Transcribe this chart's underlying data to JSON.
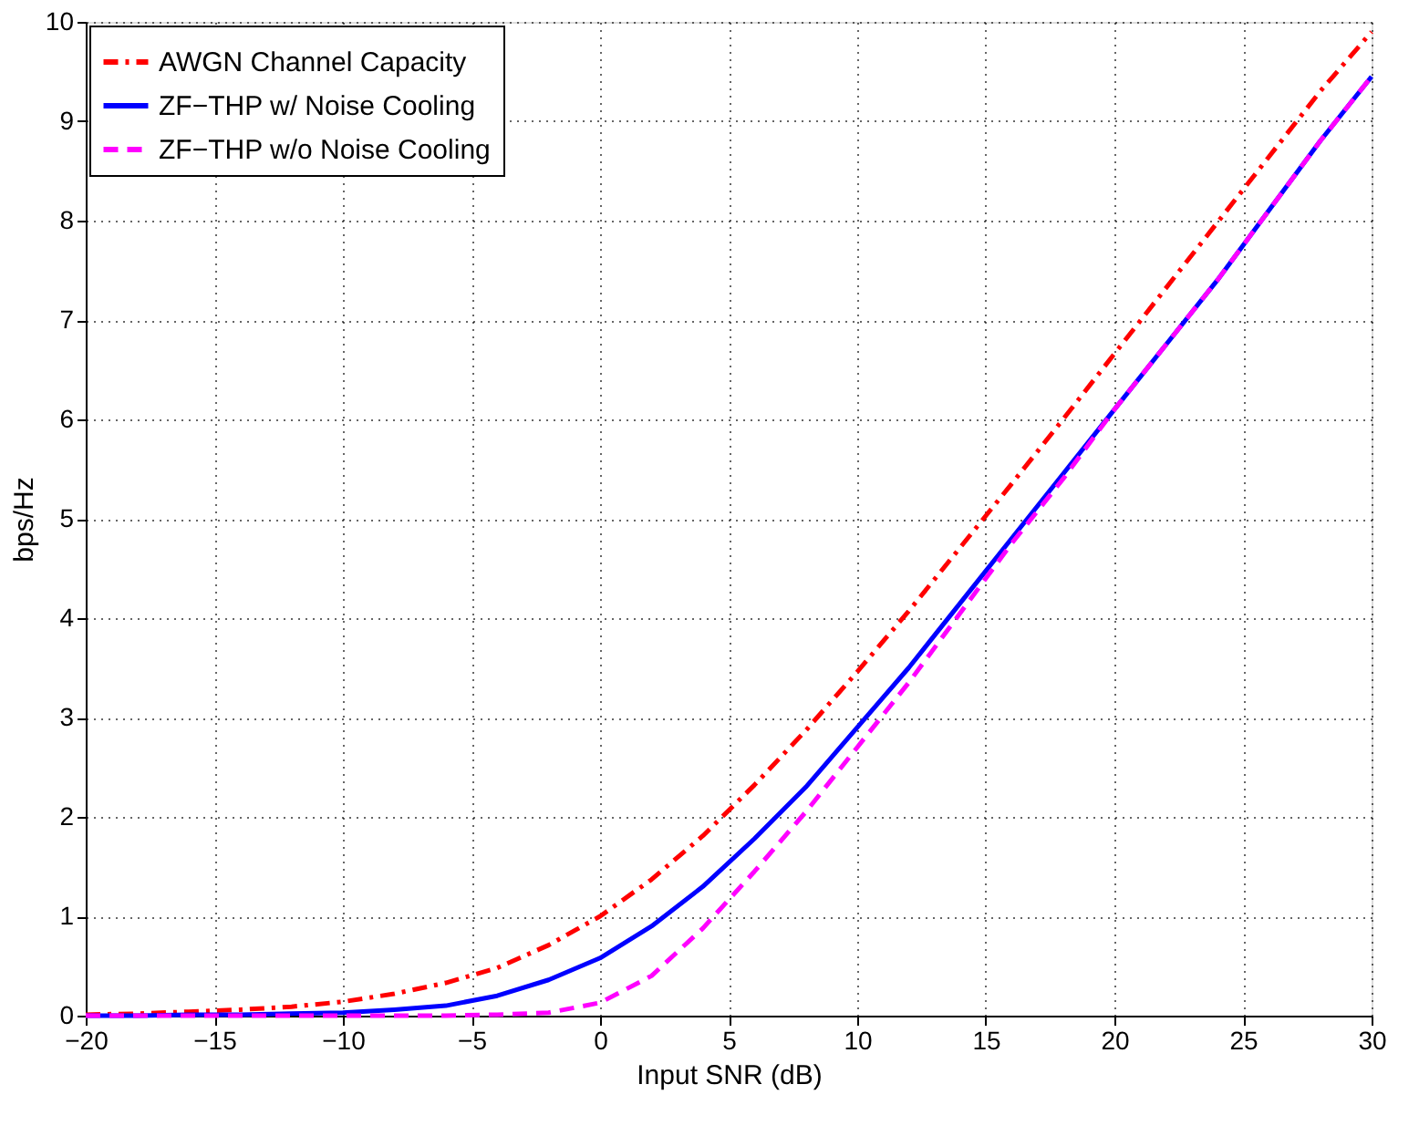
{
  "chart_data": {
    "type": "line",
    "xlabel": "Input SNR (dB)",
    "ylabel": "bps/Hz",
    "x": [
      -20,
      -18,
      -16,
      -14,
      -12,
      -10,
      -8,
      -6,
      -4,
      -2,
      0,
      2,
      4,
      6,
      8,
      10,
      12,
      14,
      16,
      18,
      20,
      22,
      24,
      26,
      28,
      30
    ],
    "series": [
      {
        "name": "AWGN Channel Capacity",
        "color": "#ff0000",
        "line_style": "dashdot",
        "values": [
          0.01,
          0.02,
          0.04,
          0.06,
          0.09,
          0.14,
          0.22,
          0.33,
          0.48,
          0.71,
          1.0,
          1.37,
          1.81,
          2.32,
          2.87,
          3.46,
          4.07,
          4.71,
          5.35,
          6.0,
          6.66,
          7.32,
          7.98,
          8.64,
          9.3,
          9.9
        ]
      },
      {
        "name": "ZF−THP w/ Noise Cooling",
        "color": "#0000ff",
        "line_style": "solid",
        "values": [
          0.0,
          0.0,
          0.01,
          0.01,
          0.02,
          0.03,
          0.06,
          0.1,
          0.2,
          0.36,
          0.58,
          0.9,
          1.3,
          1.78,
          2.3,
          2.9,
          3.5,
          4.15,
          4.8,
          5.45,
          6.1,
          6.75,
          7.4,
          8.1,
          8.8,
          9.45
        ]
      },
      {
        "name": "ZF−THP w/o Noise Cooling",
        "color": "#ff00ff",
        "line_style": "dashed",
        "values": [
          0.0,
          0.0,
          0.0,
          0.0,
          0.0,
          0.0,
          0.0,
          0.0,
          0.01,
          0.03,
          0.13,
          0.4,
          0.88,
          1.45,
          2.05,
          2.7,
          3.35,
          4.05,
          4.75,
          5.4,
          6.1,
          6.75,
          7.4,
          8.1,
          8.8,
          9.45
        ]
      }
    ],
    "xlim": [
      -20,
      30
    ],
    "xticks": [
      -20,
      -15,
      -10,
      -5,
      0,
      5,
      10,
      15,
      20,
      25,
      30
    ],
    "ylim": [
      0,
      10
    ],
    "yticks": [
      0,
      1,
      2,
      3,
      4,
      5,
      6,
      7,
      8,
      9,
      10
    ],
    "grid": true,
    "legend": "top left"
  }
}
